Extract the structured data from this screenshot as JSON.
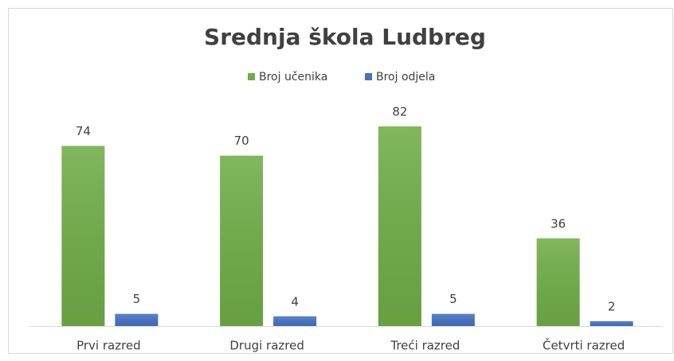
{
  "chart_data": {
    "type": "bar",
    "title": "Srednja škola Ludbreg",
    "categories": [
      "Prvi razred",
      "Drugi razred",
      "Treći razred",
      "Četvrti razred"
    ],
    "series": [
      {
        "name": "Broj učenika",
        "color": "#70ad47",
        "values": [
          74,
          70,
          82,
          36
        ]
      },
      {
        "name": "Broj odjela",
        "color": "#4472c4",
        "values": [
          5,
          4,
          5,
          2
        ]
      }
    ],
    "legend": "top"
  }
}
